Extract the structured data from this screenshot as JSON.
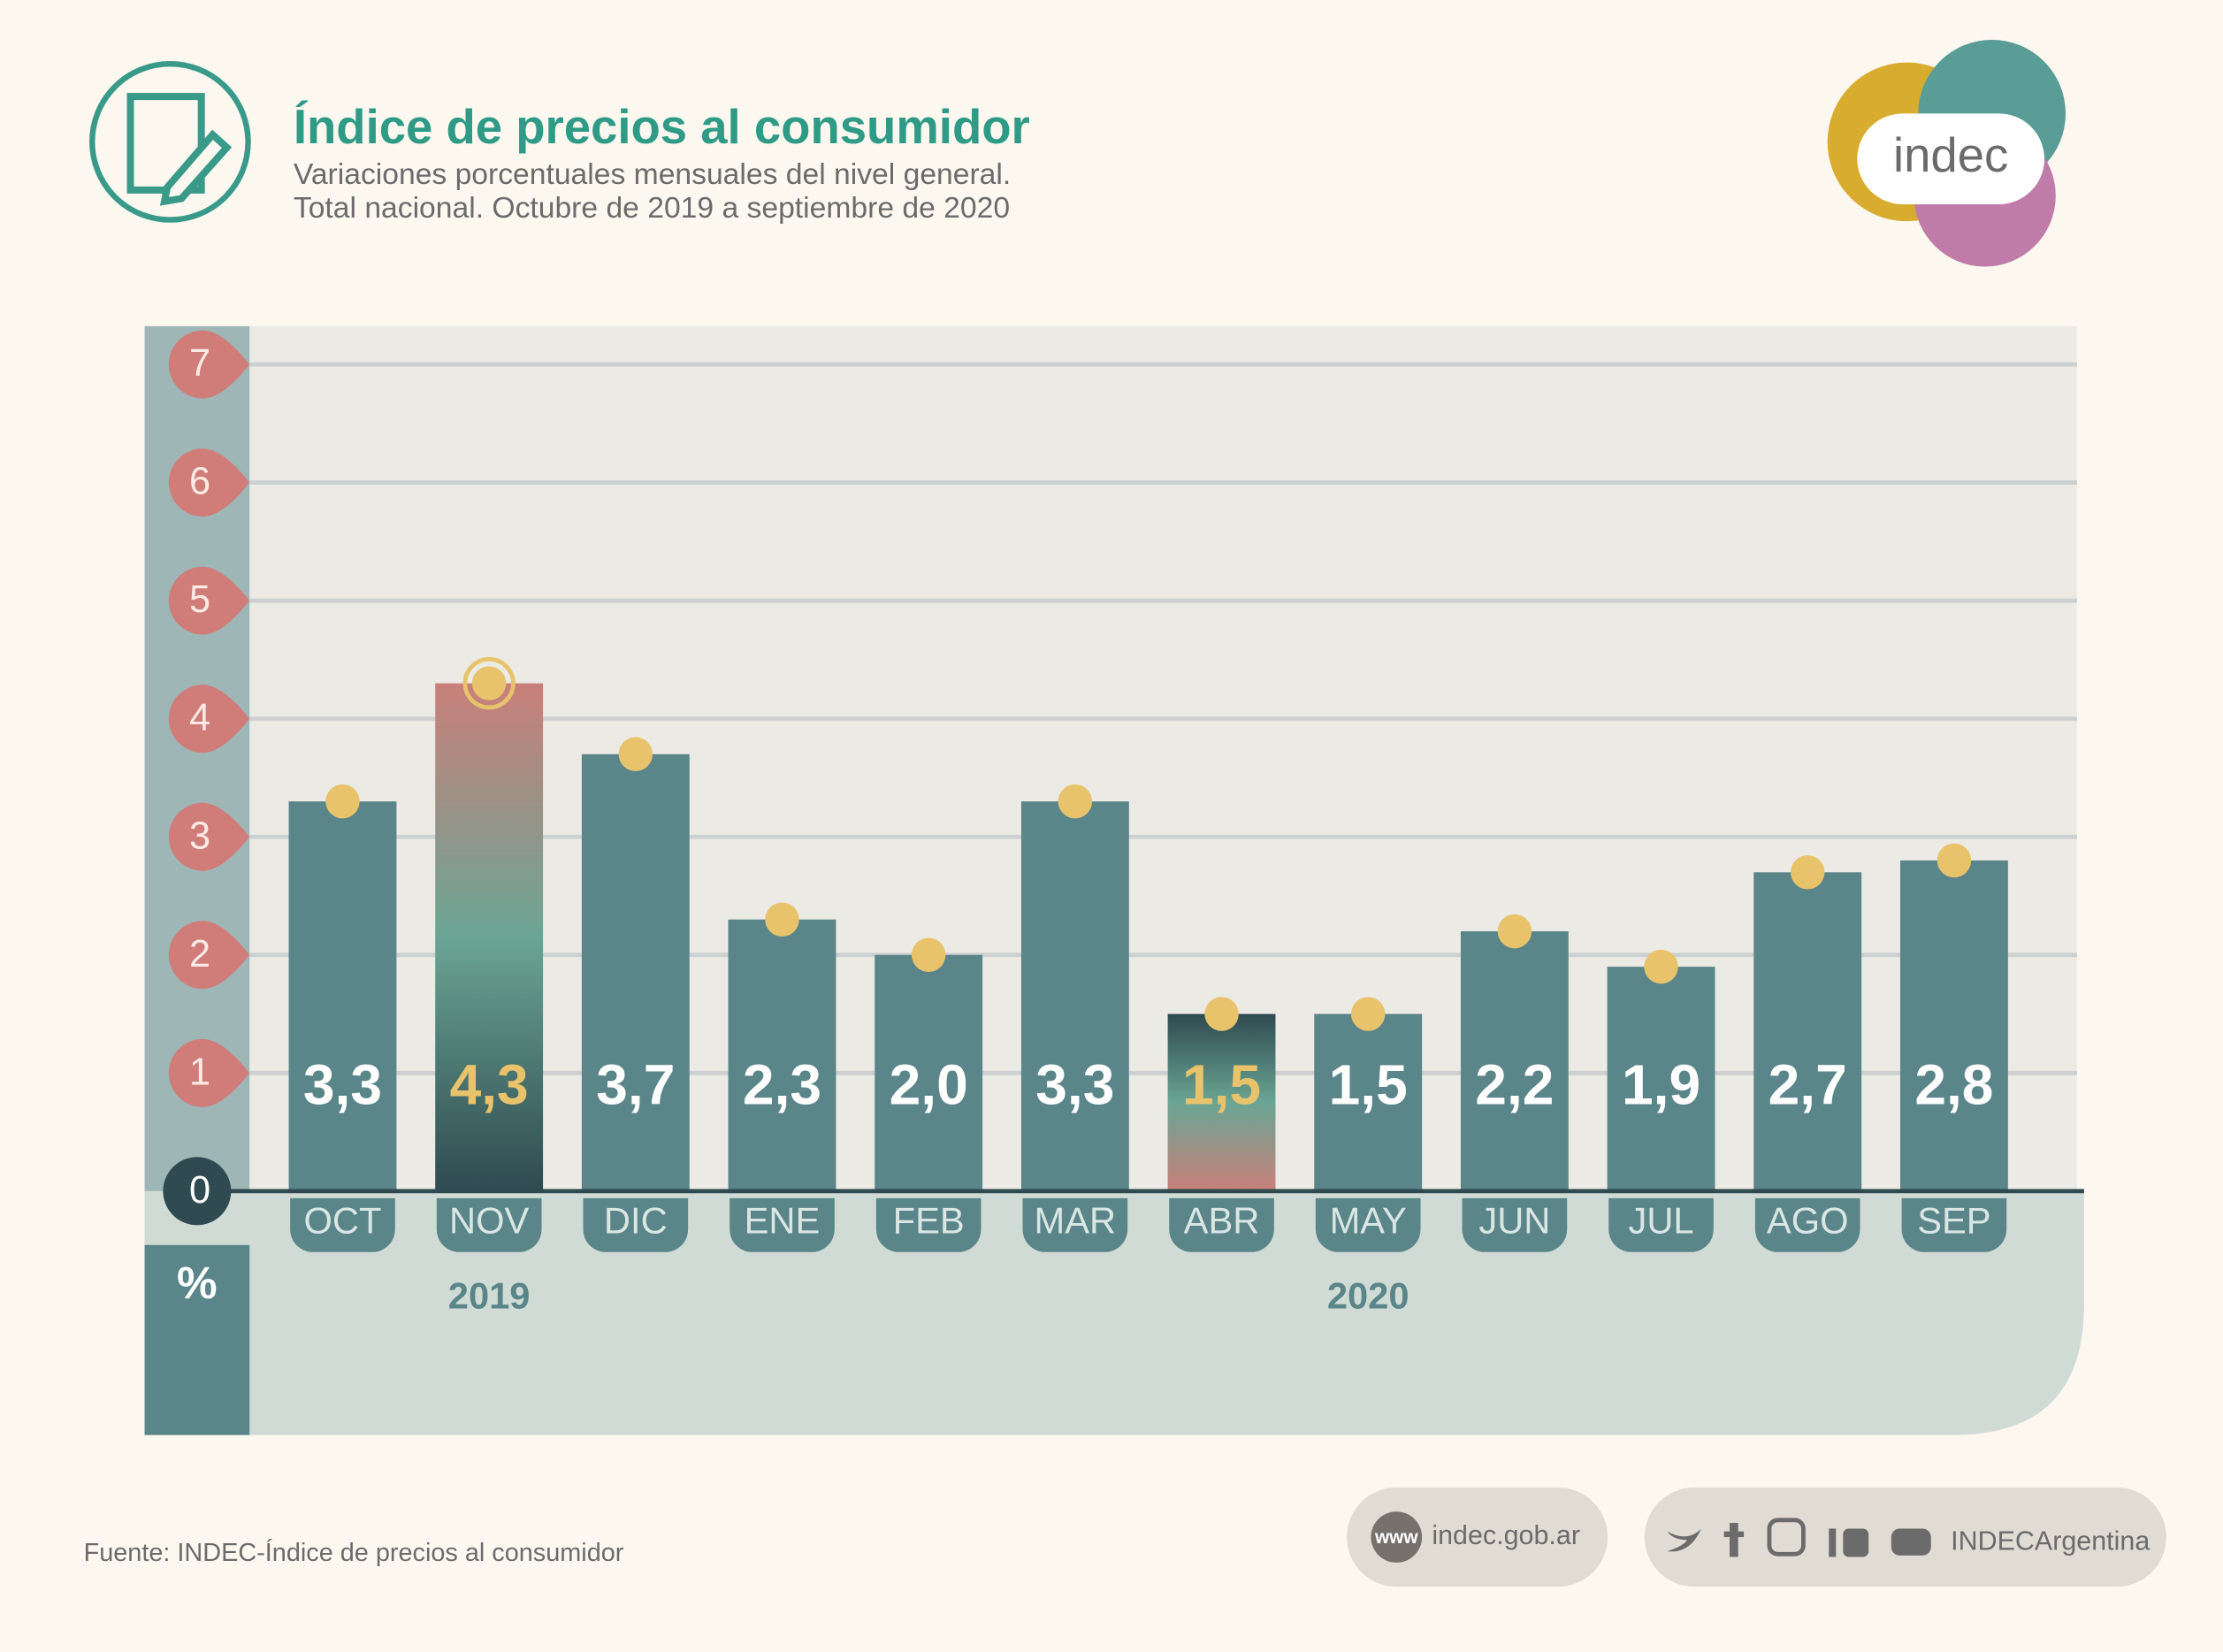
{
  "header": {
    "title": "Índice de precios al consumidor",
    "subtitle_lines": [
      "Variaciones porcentuales mensuales del nivel general.",
      "Total nacional. Octubre de 2019 a septiembre de 2020"
    ],
    "logo": "indec"
  },
  "chart_data": {
    "type": "bar",
    "unit": "%",
    "categories": [
      "OCT",
      "NOV",
      "DIC",
      "ENE",
      "FEB",
      "MAR",
      "ABR",
      "MAY",
      "JUN",
      "JUL",
      "AGO",
      "SEP"
    ],
    "years": [
      "2019",
      "2020"
    ],
    "values": [
      3.3,
      4.3,
      3.7,
      2.3,
      2.0,
      3.3,
      1.5,
      1.5,
      2.2,
      1.9,
      2.7,
      2.8
    ],
    "value_labels": [
      "3,3",
      "4,3",
      "3,7",
      "2,3",
      "2,0",
      "3,3",
      "1,5",
      "1,5",
      "2,2",
      "1,9",
      "2,7",
      "2,8"
    ],
    "colors": [
      "#5a8589",
      "#c9807a",
      "#5a8589",
      "#5a8589",
      "#5a8589",
      "#5a8589",
      "#c9807a",
      "#5a8589",
      "#5a8589",
      "#5a8589",
      "#5a8589",
      "#5a8589"
    ],
    "ylim": [
      0,
      7
    ],
    "yticks": [
      0,
      1,
      2,
      3,
      4,
      5,
      6,
      7
    ],
    "grid": true
  },
  "footer": {
    "source": "Fuente: INDEC-Índice de precios al consumidor",
    "web_icon": "www",
    "web": "indec.gob.ar",
    "social": "INDECArgentina"
  }
}
